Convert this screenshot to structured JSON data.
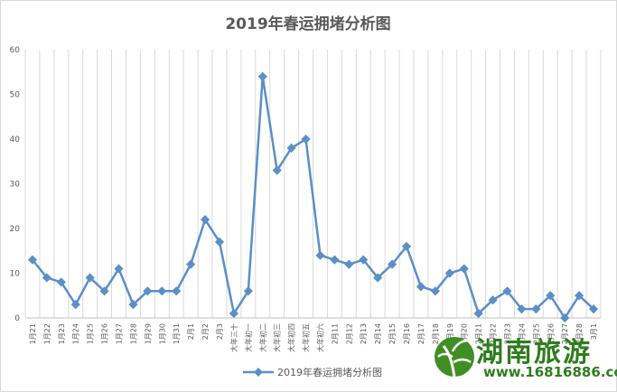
{
  "chart_data": {
    "type": "line",
    "title": "2019年春运拥堵分析图",
    "xlabel": "",
    "ylabel": "",
    "ylim": [
      0,
      60
    ],
    "yticks": [
      0,
      10,
      20,
      30,
      40,
      50,
      60
    ],
    "grid": "vertical",
    "legend_position": "bottom",
    "line_color": "#5b8fc7",
    "categories": [
      "1月21",
      "1月22",
      "1月23",
      "1月24",
      "1月25",
      "1月26",
      "1月27",
      "1月28",
      "1月29",
      "1月30",
      "1月31",
      "2月1",
      "2月2",
      "2月3",
      "大年三十",
      "大年初一",
      "大年初二",
      "大年初三",
      "大年初四",
      "大年初五",
      "大年初六",
      "2月11",
      "2月12",
      "2月13",
      "2月14",
      "2月15",
      "2月16",
      "2月17",
      "2月18",
      "2月19",
      "2月20",
      "2月21",
      "2月22",
      "2月23",
      "2月24",
      "2月25",
      "2月26",
      "2月27",
      "2月28",
      "3月1"
    ],
    "series": [
      {
        "name": "2019年春运拥堵分析图",
        "values": [
          13,
          9,
          8,
          3,
          9,
          6,
          11,
          3,
          6,
          6,
          6,
          12,
          22,
          17,
          1,
          6,
          54,
          33,
          38,
          40,
          14,
          13,
          12,
          13,
          9,
          12,
          16,
          7,
          6,
          10,
          11,
          1,
          4,
          6,
          2,
          2,
          5,
          0,
          5,
          2
        ]
      }
    ]
  },
  "watermark": {
    "text": "湖南旅游",
    "url": "www.16816886.com",
    "color": "#2f7d1e"
  }
}
